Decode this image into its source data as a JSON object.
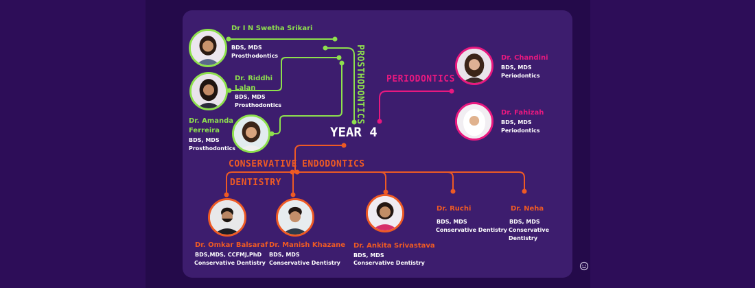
{
  "year": "YEAR 4",
  "departments": {
    "prosthodontics": "PROSTHODONTICS",
    "periodontics": "PERIODONTICS",
    "conservative": "CONSERVATIVE",
    "dentistry": "DENTISTRY",
    "endodontics": "ENDODONTICS"
  },
  "prosthodontics": [
    {
      "name": "Dr I N Swetha Srikari",
      "degree": "BDS, MDS",
      "specialty": "Prosthodontics"
    },
    {
      "name_l1": "Dr. Riddhi",
      "name_l2": "Lalan",
      "degree": "BDS, MDS",
      "specialty": "Prosthodontics"
    },
    {
      "name_l1": "Dr. Amanda",
      "name_l2": "Ferreira",
      "degree": "BDS, MDS",
      "specialty": "Prosthodontics"
    }
  ],
  "periodontics": [
    {
      "name": "Dr. Chandini",
      "degree": "BDS, MDS",
      "specialty": "Periodontics"
    },
    {
      "name": "Dr. Fahizah",
      "degree": "BDS, MDS",
      "specialty": "Periodontics"
    }
  ],
  "conservative": [
    {
      "name": "Dr. Omkar Balsaraf",
      "degree": "BDS,MDS, CCFMJ,PhD",
      "specialty": "Conservative Dentistry"
    },
    {
      "name": "Dr. Manish Khazane",
      "degree": "BDS, MDS",
      "specialty": "Conservative Dentistry"
    },
    {
      "name": "Dr. Ankita Srivastava",
      "degree": "BDS, MDS",
      "specialty": "Conservative Dentistry"
    },
    {
      "name": "Dr. Ruchi",
      "degree": "BDS, MDS",
      "specialty": "Conservative Dentistry"
    },
    {
      "name": "Dr. Neha",
      "degree": "BDS, MDS",
      "specialty": "Conservative Dentistry"
    }
  ],
  "colors": {
    "prosthodontics": "#8ee04d",
    "periodontics": "#e8197f",
    "conservative": "#ee5a24",
    "panel": "#3d1d6e",
    "background": "#240a4a"
  },
  "icons": [
    "person-photo-icon",
    "smiley-icon"
  ]
}
